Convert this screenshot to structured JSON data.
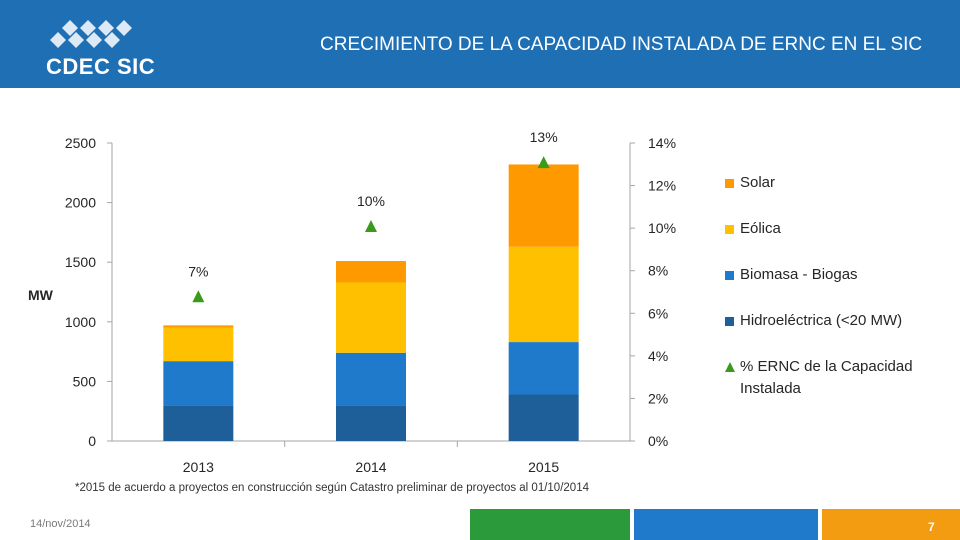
{
  "header": {
    "brand": "CDEC SIC",
    "title": "CRECIMIENTO DE LA CAPACIDAD INSTALADA DE ERNC EN EL SIC"
  },
  "footer": {
    "footnote": "*2015 de acuerdo a proyectos en construcción según Catastro preliminar de proyectos al 01/10/2014",
    "date": "14/nov/2014",
    "page": "7"
  },
  "colors": {
    "header": "#1f6fb5",
    "hidro": "#1f5f99",
    "biomasa": "#1f7acc",
    "eolica": "#ffc000",
    "solar": "#ff9900",
    "marker": "#3a9a1a"
  },
  "chart_data": {
    "type": "bar",
    "stacked": true,
    "categories": [
      "2013",
      "2014",
      "2015"
    ],
    "ylabel": "MW",
    "ylim": [
      0,
      2500
    ],
    "yticks": [
      "0",
      "500",
      "1000",
      "1500",
      "2000",
      "2500"
    ],
    "y2lim": [
      0,
      14
    ],
    "y2ticks": [
      "0%",
      "2%",
      "4%",
      "6%",
      "8%",
      "10%",
      "12%",
      "14%"
    ],
    "series": [
      {
        "name": "Hidroeléctrica (<20 MW)",
        "color": "#1f5f99",
        "values": [
          300,
          300,
          390
        ]
      },
      {
        "name": "Biomasa - Biogas",
        "color": "#1f7acc",
        "values": [
          370,
          440,
          440
        ]
      },
      {
        "name": "Eólica",
        "color": "#ffc000",
        "values": [
          280,
          590,
          800
        ]
      },
      {
        "name": "Solar",
        "color": "#ff9900",
        "values": [
          20,
          180,
          690
        ]
      }
    ],
    "line_series": {
      "name": "% ERNC de la Capacidad Instalada",
      "axis": "y2",
      "marker": "triangle",
      "values": [
        6.8,
        10.1,
        13.1
      ],
      "labels": [
        "7%",
        "10%",
        "13%"
      ]
    },
    "legend": [
      {
        "label": "Solar",
        "color": "#ff9900",
        "kind": "box"
      },
      {
        "label": "Eólica",
        "color": "#ffc000",
        "kind": "box"
      },
      {
        "label": "Biomasa - Biogas",
        "color": "#1f7acc",
        "kind": "box"
      },
      {
        "label": "Hidroeléctrica (<20 MW)",
        "color": "#1f5f99",
        "kind": "box"
      },
      {
        "label": "% ERNC de la Capacidad Instalada",
        "color": "#3a9a1a",
        "kind": "triangle"
      }
    ]
  }
}
